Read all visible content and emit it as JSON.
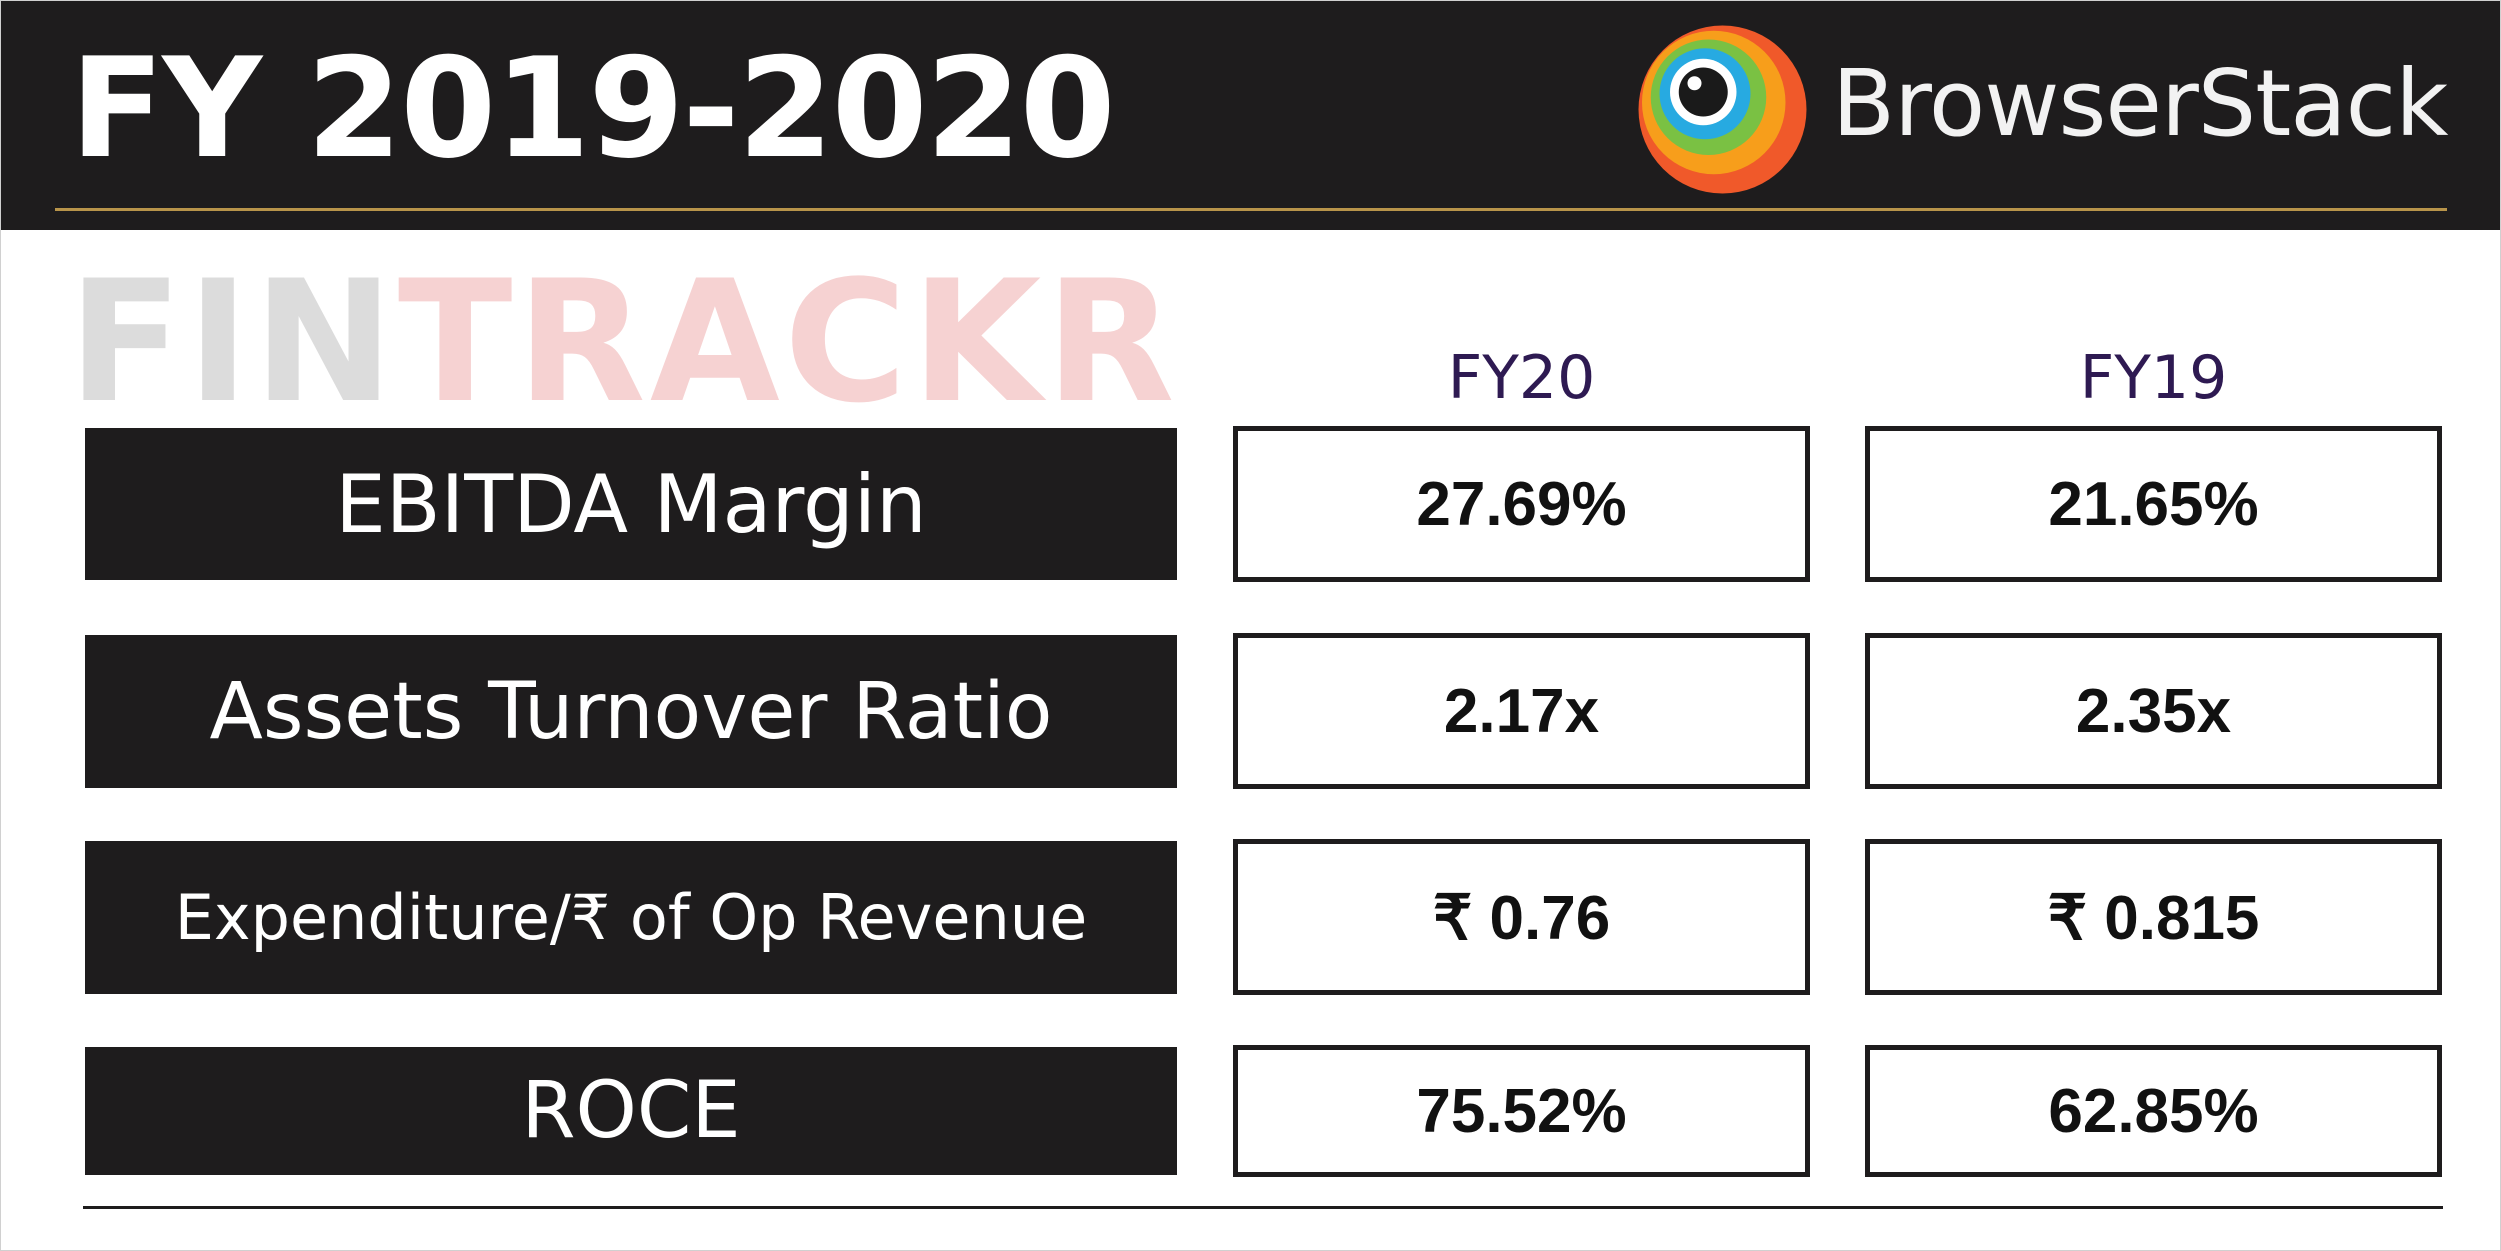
{
  "header": {
    "title": "FY 2019-2020",
    "brand_name": "BrowserStack",
    "brand_logo_icon": "browserstack-eye-logo-icon"
  },
  "watermark": {
    "part1": "FIN",
    "part2": "TRACKR"
  },
  "table": {
    "columns": [
      "FY20",
      "FY19"
    ],
    "rows": [
      {
        "label": "EBITDA Margin",
        "fy20": "27.69%",
        "fy19": "21.65%"
      },
      {
        "label": "Assets Turnover Ratio",
        "fy20": "2.17x",
        "fy19": "2.35x"
      },
      {
        "label": "Expenditure/₹ of Op Revenue",
        "fy20": "₹ 0.76",
        "fy19": "₹ 0.815"
      },
      {
        "label": "ROCE",
        "fy20": "75.52%",
        "fy19": "62.85%"
      }
    ]
  },
  "colors": {
    "dark": "#1e1c1d",
    "gold": "#b8944a",
    "column_header": "#2e1a52",
    "watermark_grey": "#dcdcdc",
    "watermark_red": "#f6d2d2"
  }
}
